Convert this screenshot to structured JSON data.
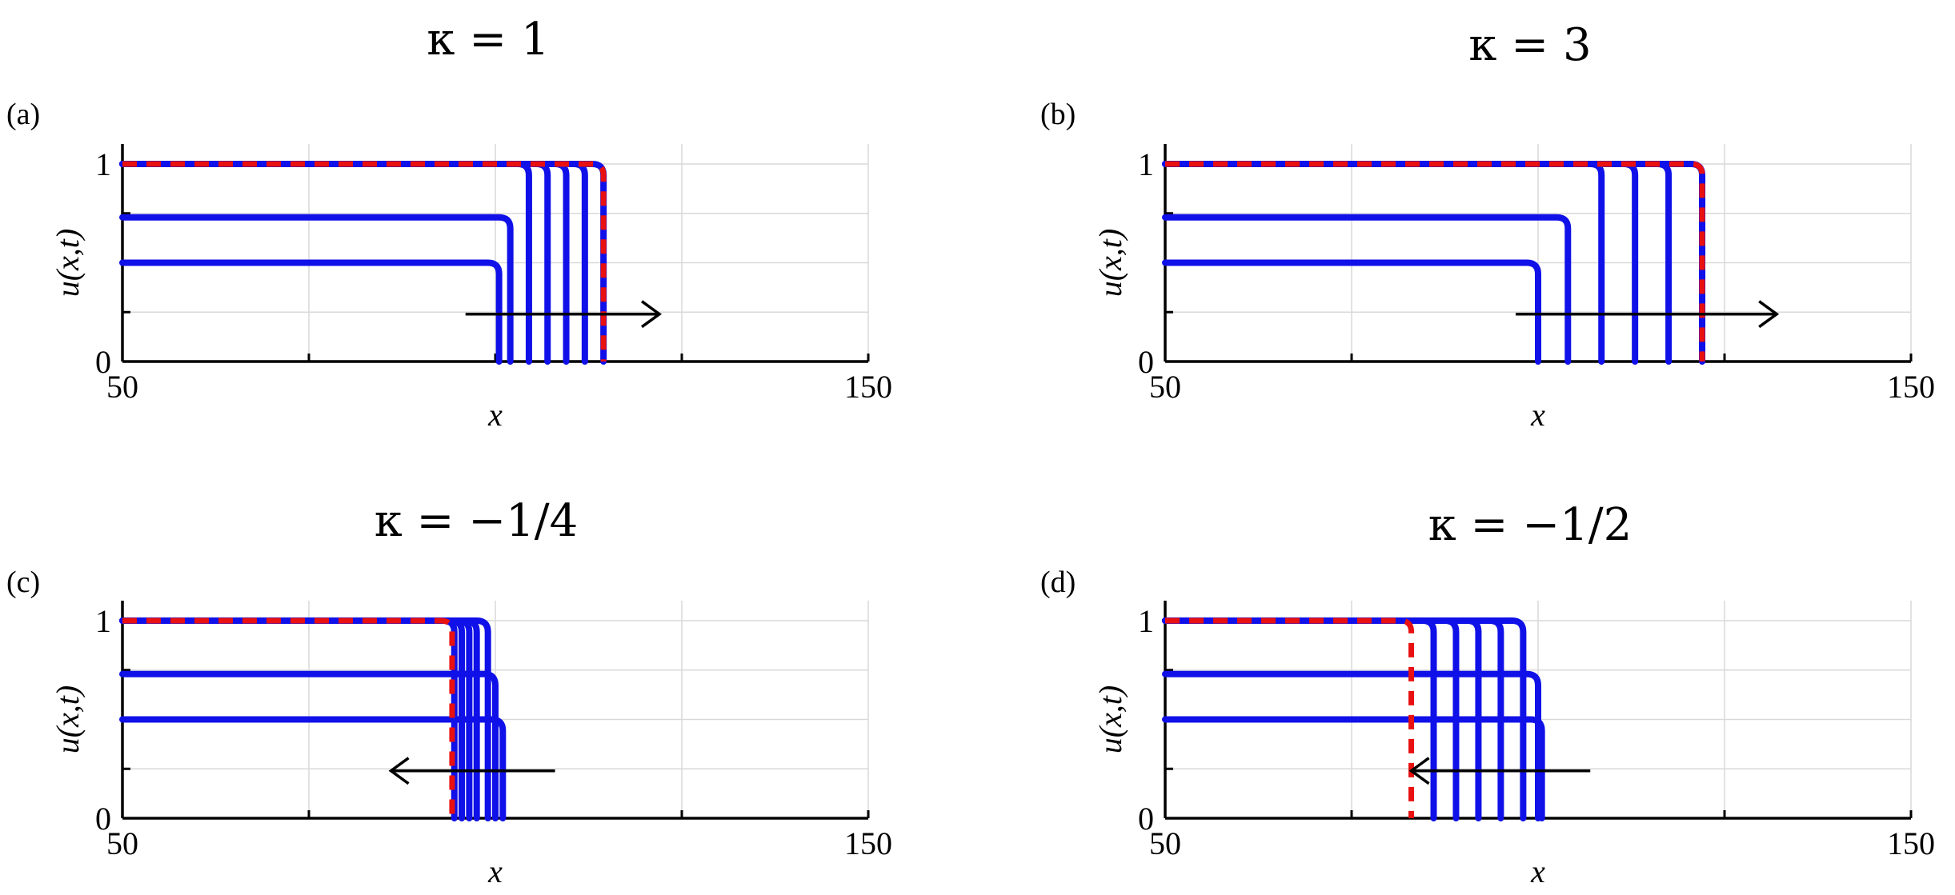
{
  "chart_data": [
    {
      "type": "line",
      "panel": "(a)",
      "title": "κ = 1",
      "xlabel": "x",
      "ylabel": "u(x,t)",
      "xlim": [
        50,
        150
      ],
      "ylim": [
        0,
        1
      ],
      "xticks": [
        50,
        150
      ],
      "yticks": [
        0,
        1
      ],
      "grid": true,
      "arrow": {
        "from": 96,
        "to": 122,
        "y": 0.24
      },
      "series": [
        {
          "color": "#1010e8",
          "style": "solid",
          "plateau": 0.5,
          "front": 100.5
        },
        {
          "color": "#1010e8",
          "style": "solid",
          "plateau": 0.73,
          "front": 102
        },
        {
          "color": "#1010e8",
          "style": "solid",
          "plateau": 1,
          "front": 104.5
        },
        {
          "color": "#1010e8",
          "style": "solid",
          "plateau": 1,
          "front": 107
        },
        {
          "color": "#1010e8",
          "style": "solid",
          "plateau": 1,
          "front": 109.5
        },
        {
          "color": "#1010e8",
          "style": "solid",
          "plateau": 1,
          "front": 112
        },
        {
          "color": "#1010e8",
          "style": "solid",
          "plateau": 1,
          "front": 114.5
        },
        {
          "color": "#e81010",
          "style": "dashed",
          "plateau": 1,
          "front": 114.5
        }
      ]
    },
    {
      "type": "line",
      "panel": "(b)",
      "title": "κ = 3",
      "xlabel": "x",
      "ylabel": "u(x,t)",
      "xlim": [
        50,
        150
      ],
      "ylim": [
        0,
        1
      ],
      "xticks": [
        50,
        150
      ],
      "yticks": [
        0,
        1
      ],
      "grid": true,
      "arrow": {
        "from": 97,
        "to": 132,
        "y": 0.24
      },
      "series": [
        {
          "color": "#1010e8",
          "style": "solid",
          "plateau": 0.5,
          "front": 100
        },
        {
          "color": "#1010e8",
          "style": "solid",
          "plateau": 0.73,
          "front": 104
        },
        {
          "color": "#1010e8",
          "style": "solid",
          "plateau": 1,
          "front": 108.5
        },
        {
          "color": "#1010e8",
          "style": "solid",
          "plateau": 1,
          "front": 113
        },
        {
          "color": "#1010e8",
          "style": "solid",
          "plateau": 1,
          "front": 117.5
        },
        {
          "color": "#1010e8",
          "style": "solid",
          "plateau": 1,
          "front": 122
        },
        {
          "color": "#e81010",
          "style": "dashed",
          "plateau": 1,
          "front": 122
        }
      ]
    },
    {
      "type": "line",
      "panel": "(c)",
      "title": "κ = −1/4",
      "xlabel": "x",
      "ylabel": "u(x,t)",
      "xlim": [
        50,
        150
      ],
      "ylim": [
        0,
        1
      ],
      "xticks": [
        50,
        150
      ],
      "yticks": [
        0,
        1
      ],
      "grid": true,
      "arrow": {
        "from": 108,
        "to": 86,
        "y": 0.24
      },
      "series": [
        {
          "color": "#1010e8",
          "style": "solid",
          "plateau": 0.5,
          "front": 101
        },
        {
          "color": "#1010e8",
          "style": "solid",
          "plateau": 0.73,
          "front": 100
        },
        {
          "color": "#1010e8",
          "style": "solid",
          "plateau": 1,
          "front": 99
        },
        {
          "color": "#1010e8",
          "style": "solid",
          "plateau": 1,
          "front": 97.5
        },
        {
          "color": "#1010e8",
          "style": "solid",
          "plateau": 1,
          "front": 96.5
        },
        {
          "color": "#1010e8",
          "style": "solid",
          "plateau": 1,
          "front": 95.5
        },
        {
          "color": "#1010e8",
          "style": "solid",
          "plateau": 1,
          "front": 94.5
        },
        {
          "color": "#e81010",
          "style": "dashed",
          "plateau": 1,
          "front": 94.2
        }
      ]
    },
    {
      "type": "line",
      "panel": "(d)",
      "title": "κ = −1/2",
      "xlabel": "x",
      "ylabel": "u(x,t)",
      "xlim": [
        50,
        150
      ],
      "ylim": [
        0,
        1
      ],
      "xticks": [
        50,
        150
      ],
      "yticks": [
        0,
        1
      ],
      "grid": true,
      "arrow": {
        "from": 107,
        "to": 83,
        "y": 0.24
      },
      "series": [
        {
          "color": "#1010e8",
          "style": "solid",
          "plateau": 0.5,
          "front": 100.5
        },
        {
          "color": "#1010e8",
          "style": "solid",
          "plateau": 0.73,
          "front": 100
        },
        {
          "color": "#1010e8",
          "style": "solid",
          "plateau": 1,
          "front": 98
        },
        {
          "color": "#1010e8",
          "style": "solid",
          "plateau": 1,
          "front": 95
        },
        {
          "color": "#1010e8",
          "style": "solid",
          "plateau": 1,
          "front": 92
        },
        {
          "color": "#1010e8",
          "style": "solid",
          "plateau": 1,
          "front": 89
        },
        {
          "color": "#1010e8",
          "style": "solid",
          "plateau": 1,
          "front": 86
        },
        {
          "color": "#e81010",
          "style": "dashed",
          "plateau": 1,
          "front": 83
        }
      ]
    }
  ]
}
